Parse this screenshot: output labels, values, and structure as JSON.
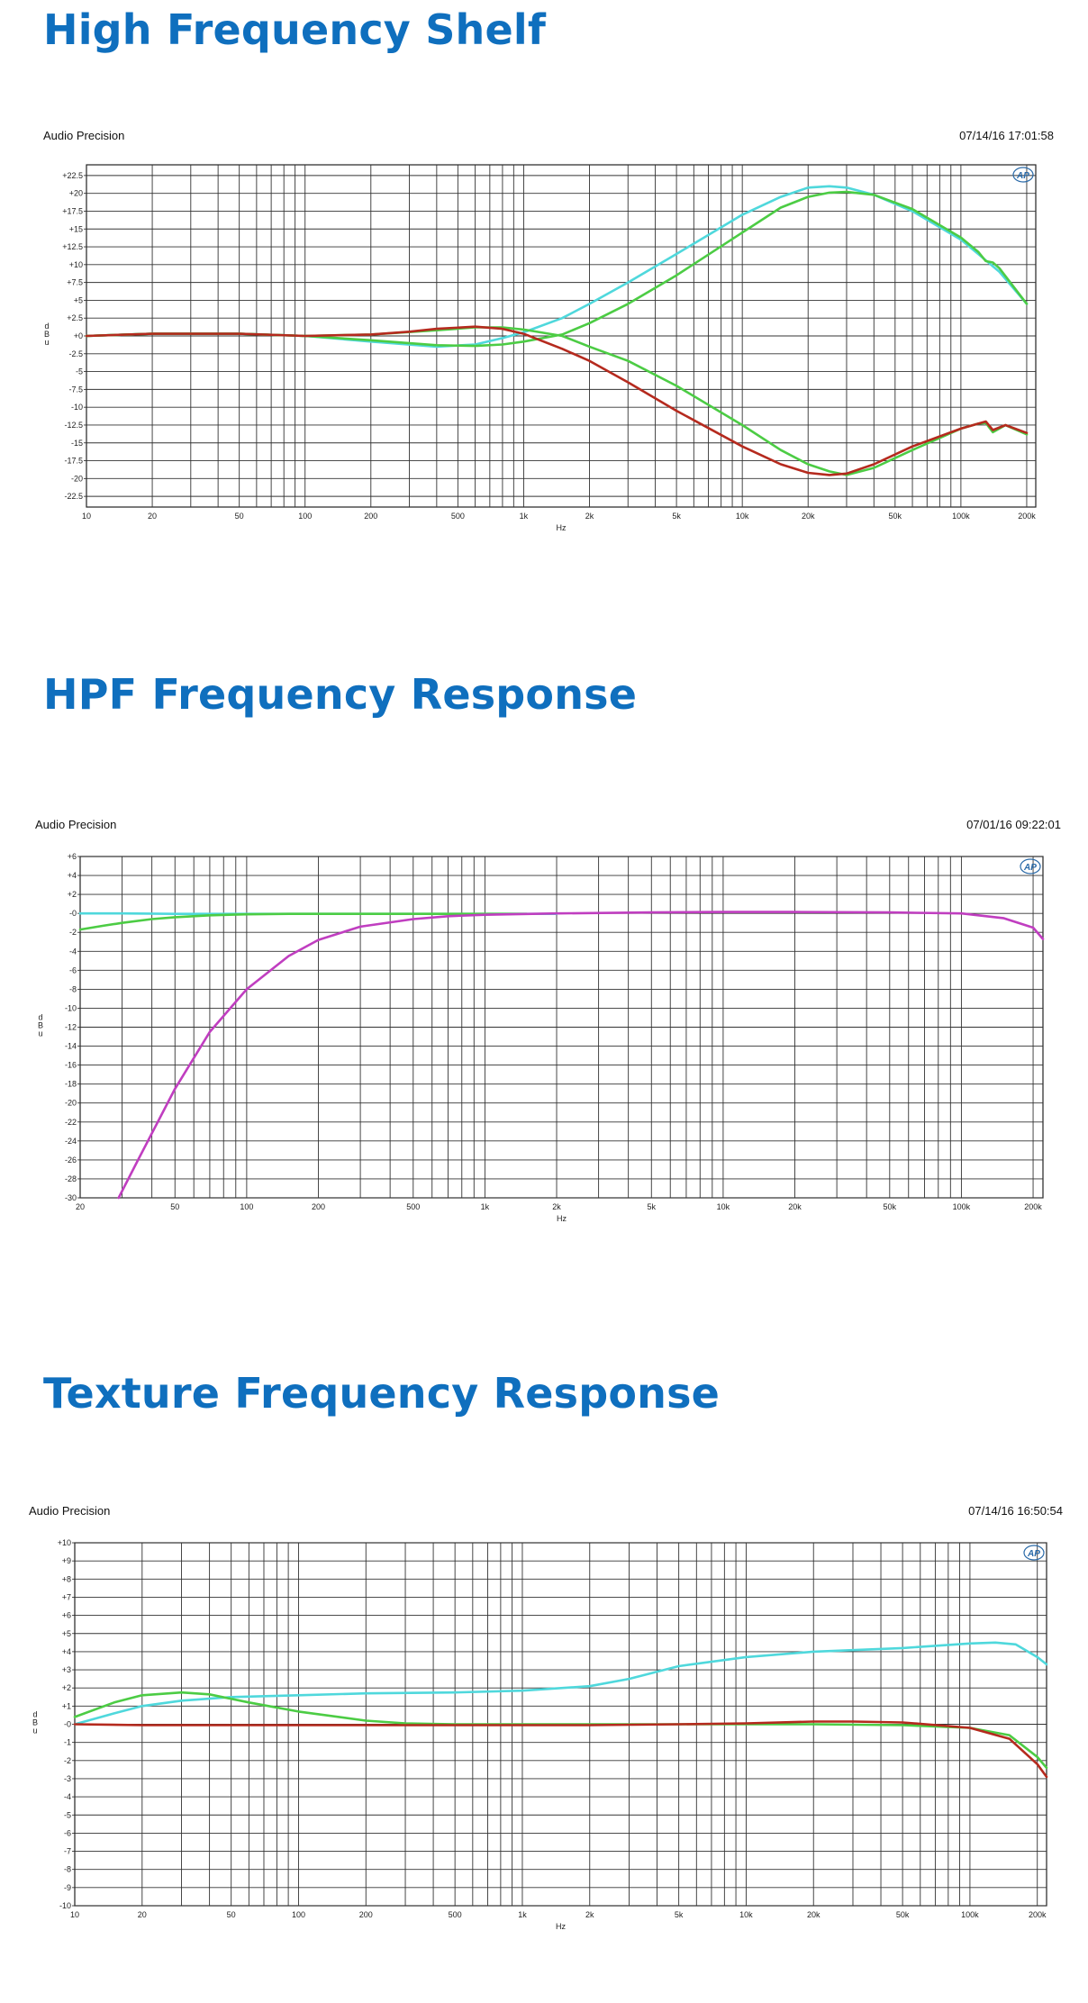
{
  "sections": [
    {
      "title": "High Frequency Shelf",
      "brand": "Audio Precision",
      "timestamp": "07/14/16 17:01:58"
    },
    {
      "title": "HPF Frequency Response",
      "brand": "Audio Precision",
      "timestamp": "07/01/16 09:22:01"
    },
    {
      "title": "Texture Frequency Response",
      "brand": "Audio Precision",
      "timestamp": "07/14/16 16:50:54"
    }
  ],
  "logo": {
    "text": "AP",
    "icon": "audio-precision-logo"
  },
  "chart_data": [
    {
      "type": "line",
      "title": "High Frequency Shelf",
      "xlabel": "Hz",
      "ylabel": "d B u",
      "xscale": "log",
      "xlim": [
        10,
        220000
      ],
      "ylim": [
        -24,
        24
      ],
      "grid": true,
      "xticks": [
        10,
        20,
        50,
        100,
        200,
        500,
        1000,
        2000,
        5000,
        10000,
        20000,
        50000,
        100000,
        200000
      ],
      "xtick_labels": [
        "10",
        "20",
        "50",
        "100",
        "200",
        "500",
        "1k",
        "2k",
        "5k",
        "10k",
        "20k",
        "50k",
        "100k",
        "200k"
      ],
      "yticks": [
        22.5,
        20,
        17.5,
        15,
        12.5,
        10,
        7.5,
        5,
        2.5,
        0,
        -2.5,
        -5,
        -7.5,
        -10,
        -12.5,
        -15,
        -17.5,
        -20,
        -22.5
      ],
      "ytick_labels": [
        "+22.5",
        "+20",
        "+17.5",
        "+15",
        "+12.5",
        "+10",
        "+7.5",
        "+5",
        "+2.5",
        "+0",
        "-2.5",
        "-5",
        "-7.5",
        "-10",
        "-12.5",
        "-15",
        "-17.5",
        "-20",
        "-22.5"
      ],
      "series": [
        {
          "color": "#4fd8dc",
          "x": [
            10,
            20,
            50,
            100,
            200,
            400,
            600,
            800,
            1000,
            1500,
            2000,
            3000,
            5000,
            10000,
            15000,
            20000,
            25000,
            30000,
            40000,
            60000,
            100000,
            120000,
            150000,
            200000
          ],
          "y": [
            0,
            0.3,
            0.3,
            0,
            -0.8,
            -1.5,
            -1.2,
            -0.3,
            0.5,
            2.5,
            4.5,
            7.5,
            11.5,
            17,
            19.5,
            20.8,
            21,
            20.8,
            19.8,
            17.5,
            13.5,
            11.5,
            9,
            4.5
          ]
        },
        {
          "color": "#4ccc44",
          "x": [
            10,
            20,
            50,
            100,
            200,
            400,
            600,
            800,
            1000,
            1500,
            2000,
            3000,
            5000,
            10000,
            15000,
            20000,
            25000,
            30000,
            40000,
            60000,
            100000,
            120000,
            130000,
            140000,
            150000,
            200000
          ],
          "y": [
            0,
            0.3,
            0.3,
            0,
            -0.6,
            -1.3,
            -1.4,
            -1.2,
            -0.8,
            0.2,
            1.8,
            4.5,
            8.5,
            14.5,
            18,
            19.5,
            20.1,
            20.2,
            19.8,
            17.8,
            13.8,
            11.8,
            10.5,
            10.3,
            9.5,
            4.5
          ]
        },
        {
          "color": "#4ccc44",
          "x": [
            10,
            20,
            50,
            100,
            200,
            400,
            600,
            800,
            1000,
            1500,
            2000,
            3000,
            5000,
            10000,
            15000,
            20000,
            25000,
            30000,
            40000,
            60000,
            100000,
            120000,
            130000,
            140000,
            160000,
            200000
          ],
          "y": [
            0,
            0.3,
            0.3,
            0,
            0.2,
            0.8,
            1.2,
            1.2,
            0.9,
            0,
            -1.5,
            -3.5,
            -7,
            -12.5,
            -16,
            -18,
            -19,
            -19.5,
            -18.5,
            -16,
            -13,
            -12.3,
            -12.2,
            -13.5,
            -12.5,
            -13.8
          ]
        },
        {
          "color": "#b52a1e",
          "x": [
            10,
            20,
            50,
            100,
            200,
            300,
            400,
            600,
            800,
            1000,
            1500,
            2000,
            3000,
            5000,
            10000,
            15000,
            20000,
            25000,
            30000,
            40000,
            60000,
            100000,
            120000,
            130000,
            140000,
            160000,
            200000
          ],
          "y": [
            0,
            0.3,
            0.3,
            0,
            0.2,
            0.6,
            1,
            1.3,
            1,
            0.3,
            -1.8,
            -3.5,
            -6.5,
            -10.5,
            -15.5,
            -18,
            -19.2,
            -19.5,
            -19.3,
            -18,
            -15.5,
            -13,
            -12.3,
            -12,
            -13.2,
            -12.5,
            -13.6
          ]
        }
      ]
    },
    {
      "type": "line",
      "title": "HPF Frequency Response",
      "xlabel": "Hz",
      "ylabel": "d B u",
      "xscale": "log",
      "xlim": [
        20,
        220000
      ],
      "ylim": [
        -30,
        6
      ],
      "grid": true,
      "xticks": [
        20,
        50,
        100,
        200,
        500,
        1000,
        2000,
        5000,
        10000,
        20000,
        50000,
        100000,
        200000
      ],
      "xtick_labels": [
        "20",
        "50",
        "100",
        "200",
        "500",
        "1k",
        "2k",
        "5k",
        "10k",
        "20k",
        "50k",
        "100k",
        "200k"
      ],
      "yticks": [
        6,
        4,
        2,
        0,
        -2,
        -4,
        -6,
        -8,
        -10,
        -12,
        -14,
        -16,
        -18,
        -20,
        -22,
        -24,
        -26,
        -28,
        -30
      ],
      "ytick_labels": [
        "+6",
        "+4",
        "+2",
        "-0",
        "-2",
        "-4",
        "-6",
        "-8",
        "-10",
        "-12",
        "-14",
        "-16",
        "-18",
        "-20",
        "-22",
        "-24",
        "-26",
        "-28",
        "-30"
      ],
      "series": [
        {
          "color": "#4fd8dc",
          "x": [
            20,
            30,
            50,
            100,
            200,
            500,
            1000,
            2000
          ],
          "y": [
            0,
            0,
            -0.05,
            -0.05,
            -0.05,
            -0.05,
            -0.05,
            -0.05
          ]
        },
        {
          "color": "#4ccc44",
          "x": [
            20,
            25,
            30,
            40,
            50,
            70,
            100,
            150,
            200,
            500,
            1000,
            1500
          ],
          "y": [
            -1.7,
            -1.3,
            -1,
            -0.6,
            -0.4,
            -0.2,
            -0.1,
            -0.05,
            -0.05,
            -0.05,
            -0.05,
            -0.05
          ]
        },
        {
          "color": "#c03ec0",
          "x": [
            29,
            35,
            50,
            70,
            100,
            150,
            200,
            300,
            500,
            700,
            1000,
            2000,
            5000,
            10000,
            20000,
            50000,
            100000,
            150000,
            200000,
            220000
          ],
          "y": [
            -30,
            -26,
            -18.5,
            -12.5,
            -8,
            -4.5,
            -2.8,
            -1.4,
            -0.6,
            -0.3,
            -0.15,
            0,
            0.1,
            0.15,
            0.15,
            0.1,
            0,
            -0.5,
            -1.5,
            -2.7
          ]
        }
      ]
    },
    {
      "type": "line",
      "title": "Texture Frequency Response",
      "xlabel": "Hz",
      "ylabel": "d B u",
      "xscale": "log",
      "xlim": [
        10,
        220000
      ],
      "ylim": [
        -10,
        10
      ],
      "grid": true,
      "xticks": [
        10,
        20,
        50,
        100,
        200,
        500,
        1000,
        2000,
        5000,
        10000,
        20000,
        50000,
        100000,
        200000
      ],
      "xtick_labels": [
        "10",
        "20",
        "50",
        "100",
        "200",
        "500",
        "1k",
        "2k",
        "5k",
        "10k",
        "20k",
        "50k",
        "100k",
        "200k"
      ],
      "yticks": [
        10,
        9,
        8,
        7,
        6,
        5,
        4,
        3,
        2,
        1,
        0,
        -1,
        -2,
        -3,
        -4,
        -5,
        -6,
        -7,
        -8,
        -9,
        -10
      ],
      "ytick_labels": [
        "+10",
        "+9",
        "+8",
        "+7",
        "+6",
        "+5",
        "+4",
        "+3",
        "+2",
        "+1",
        "-0",
        "-1",
        "-2",
        "-3",
        "-4",
        "-5",
        "-6",
        "-7",
        "-8",
        "-9",
        "-10"
      ],
      "series": [
        {
          "color": "#4fd8dc",
          "x": [
            10,
            15,
            20,
            30,
            50,
            100,
            200,
            500,
            1000,
            2000,
            3000,
            5000,
            10000,
            20000,
            50000,
            100000,
            130000,
            160000,
            200000,
            220000
          ],
          "y": [
            0,
            0.6,
            1,
            1.3,
            1.5,
            1.6,
            1.7,
            1.75,
            1.85,
            2.1,
            2.5,
            3.2,
            3.7,
            4,
            4.2,
            4.45,
            4.5,
            4.4,
            3.7,
            3.3
          ]
        },
        {
          "color": "#4ccc44",
          "x": [
            10,
            15,
            20,
            30,
            40,
            60,
            100,
            200,
            300,
            500,
            1000,
            5000,
            20000,
            50000,
            100000,
            150000,
            200000,
            220000
          ],
          "y": [
            0.4,
            1.2,
            1.6,
            1.75,
            1.65,
            1.2,
            0.7,
            0.2,
            0.05,
            0,
            0,
            0,
            0,
            -0.05,
            -0.2,
            -0.6,
            -1.8,
            -2.4
          ]
        },
        {
          "color": "#b52a1e",
          "x": [
            10,
            20,
            50,
            100,
            200,
            500,
            1000,
            2000,
            5000,
            10000,
            20000,
            30000,
            50000,
            100000,
            150000,
            200000,
            220000
          ],
          "y": [
            0,
            -0.05,
            -0.05,
            -0.05,
            -0.05,
            -0.05,
            -0.05,
            -0.05,
            0,
            0.05,
            0.15,
            0.15,
            0.1,
            -0.2,
            -0.8,
            -2.2,
            -2.9
          ]
        }
      ]
    }
  ]
}
